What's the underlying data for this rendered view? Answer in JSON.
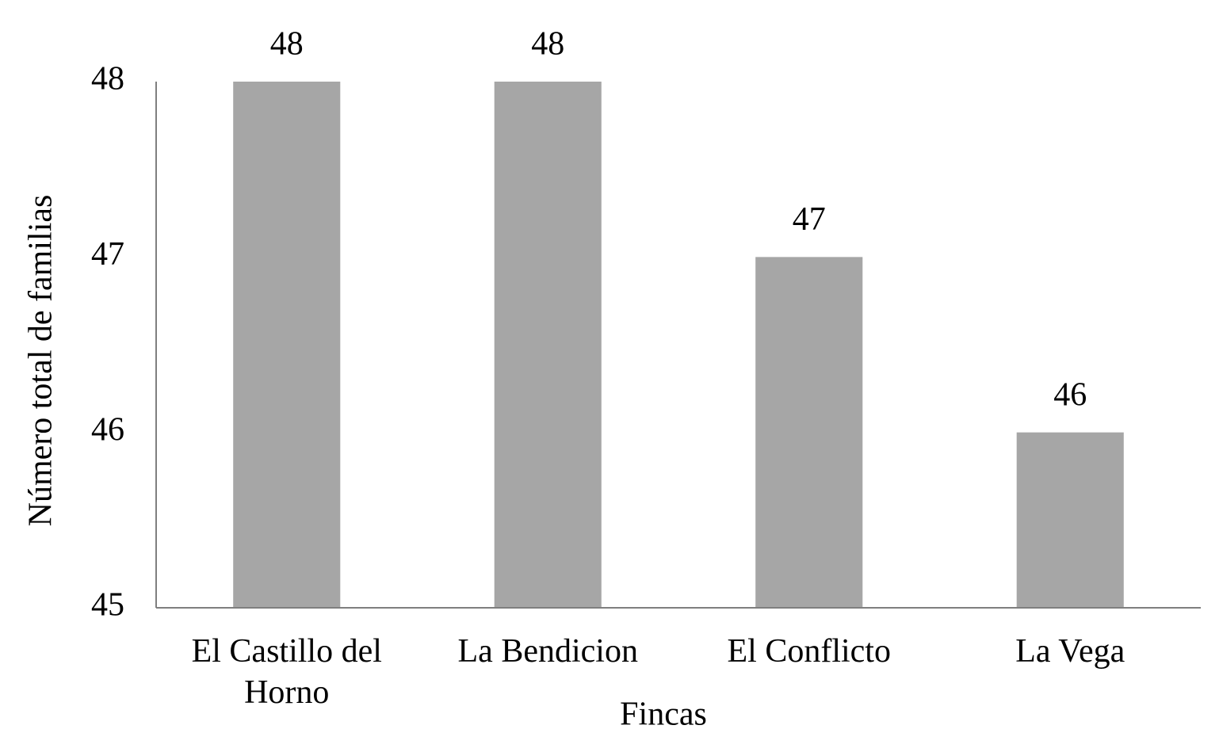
{
  "chart_data": {
    "type": "bar",
    "x_label": "Fincas",
    "y_label": "Número total de familias",
    "categories": [
      "El Castillo del Horno",
      "La Bendicion",
      "El Conflicto",
      "La Vega"
    ],
    "values": [
      48,
      48,
      47,
      46
    ],
    "color": "#a6a6a6",
    "ylim": [
      45,
      48
    ],
    "yticks": [
      45,
      46,
      47,
      48
    ],
    "grid": false
  }
}
